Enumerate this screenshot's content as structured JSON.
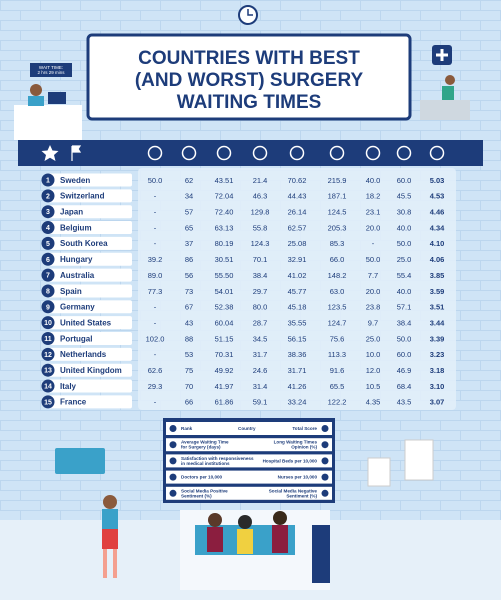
{
  "sign": "WAIT TIME:\n2 hrs 29 mins",
  "header": {
    "title_lines": [
      "COUNTRIES WITH BEST",
      "(AND WORST) SURGERY",
      "WAITING TIMES"
    ]
  },
  "table": {
    "rows": [
      [
        "1",
        "Sweden",
        "50.0",
        "62",
        "43.51",
        "21.4",
        "70.62",
        "215.9",
        "40.0",
        "60.0",
        "5.03"
      ],
      [
        "2",
        "Switzerland",
        "-",
        "34",
        "72.04",
        "46.3",
        "44.43",
        "187.1",
        "18.2",
        "45.5",
        "4.53"
      ],
      [
        "3",
        "Japan",
        "-",
        "57",
        "72.40",
        "129.8",
        "26.14",
        "124.5",
        "23.1",
        "30.8",
        "4.46"
      ],
      [
        "4",
        "Belgium",
        "-",
        "65",
        "63.13",
        "55.8",
        "62.57",
        "205.3",
        "20.0",
        "40.0",
        "4.34"
      ],
      [
        "5",
        "South Korea",
        "-",
        "37",
        "80.19",
        "124.3",
        "25.08",
        "85.3",
        "-",
        "50.0",
        "4.10"
      ],
      [
        "6",
        "Hungary",
        "39.2",
        "86",
        "30.51",
        "70.1",
        "32.91",
        "66.0",
        "50.0",
        "25.0",
        "4.06"
      ],
      [
        "7",
        "Australia",
        "89.0",
        "56",
        "55.50",
        "38.4",
        "41.02",
        "148.2",
        "7.7",
        "55.4",
        "3.85"
      ],
      [
        "8",
        "Spain",
        "77.3",
        "73",
        "54.01",
        "29.7",
        "45.77",
        "63.0",
        "20.0",
        "40.0",
        "3.59"
      ],
      [
        "9",
        "Germany",
        "-",
        "67",
        "52.38",
        "80.0",
        "45.18",
        "123.5",
        "23.8",
        "57.1",
        "3.51"
      ],
      [
        "10",
        "United States",
        "-",
        "43",
        "60.04",
        "28.7",
        "35.55",
        "124.7",
        "9.7",
        "38.4",
        "3.44"
      ],
      [
        "11",
        "Portugal",
        "102.0",
        "88",
        "51.15",
        "34.5",
        "56.15",
        "75.6",
        "25.0",
        "50.0",
        "3.39"
      ],
      [
        "12",
        "Netherlands",
        "-",
        "53",
        "70.31",
        "31.7",
        "38.36",
        "113.3",
        "10.0",
        "60.0",
        "3.23"
      ],
      [
        "13",
        "United Kingdom",
        "62.6",
        "75",
        "49.92",
        "24.6",
        "31.71",
        "91.6",
        "12.0",
        "46.9",
        "3.18"
      ],
      [
        "14",
        "Italy",
        "29.3",
        "70",
        "41.97",
        "31.4",
        "41.26",
        "65.5",
        "10.5",
        "68.4",
        "3.10"
      ],
      [
        "15",
        "France",
        "-",
        "66",
        "61.86",
        "59.1",
        "33.24",
        "122.2",
        "4.35",
        "43.5",
        "3.07"
      ]
    ]
  },
  "legend": [
    [
      "Rank",
      "Country",
      "Total Score"
    ],
    [
      "Average Waiting Time for Surgery (days)",
      "Long Waiting Times Opinion (%)"
    ],
    [
      "Satisfaction with responsiveness in medical institutions",
      "Hospital Beds per 10,000"
    ],
    [
      "Doctors per 10,000",
      "Nurses per 10,000"
    ],
    [
      "Social Media Positive Sentiment (%)",
      "Social Media Negative Sentiment (%)"
    ]
  ]
}
